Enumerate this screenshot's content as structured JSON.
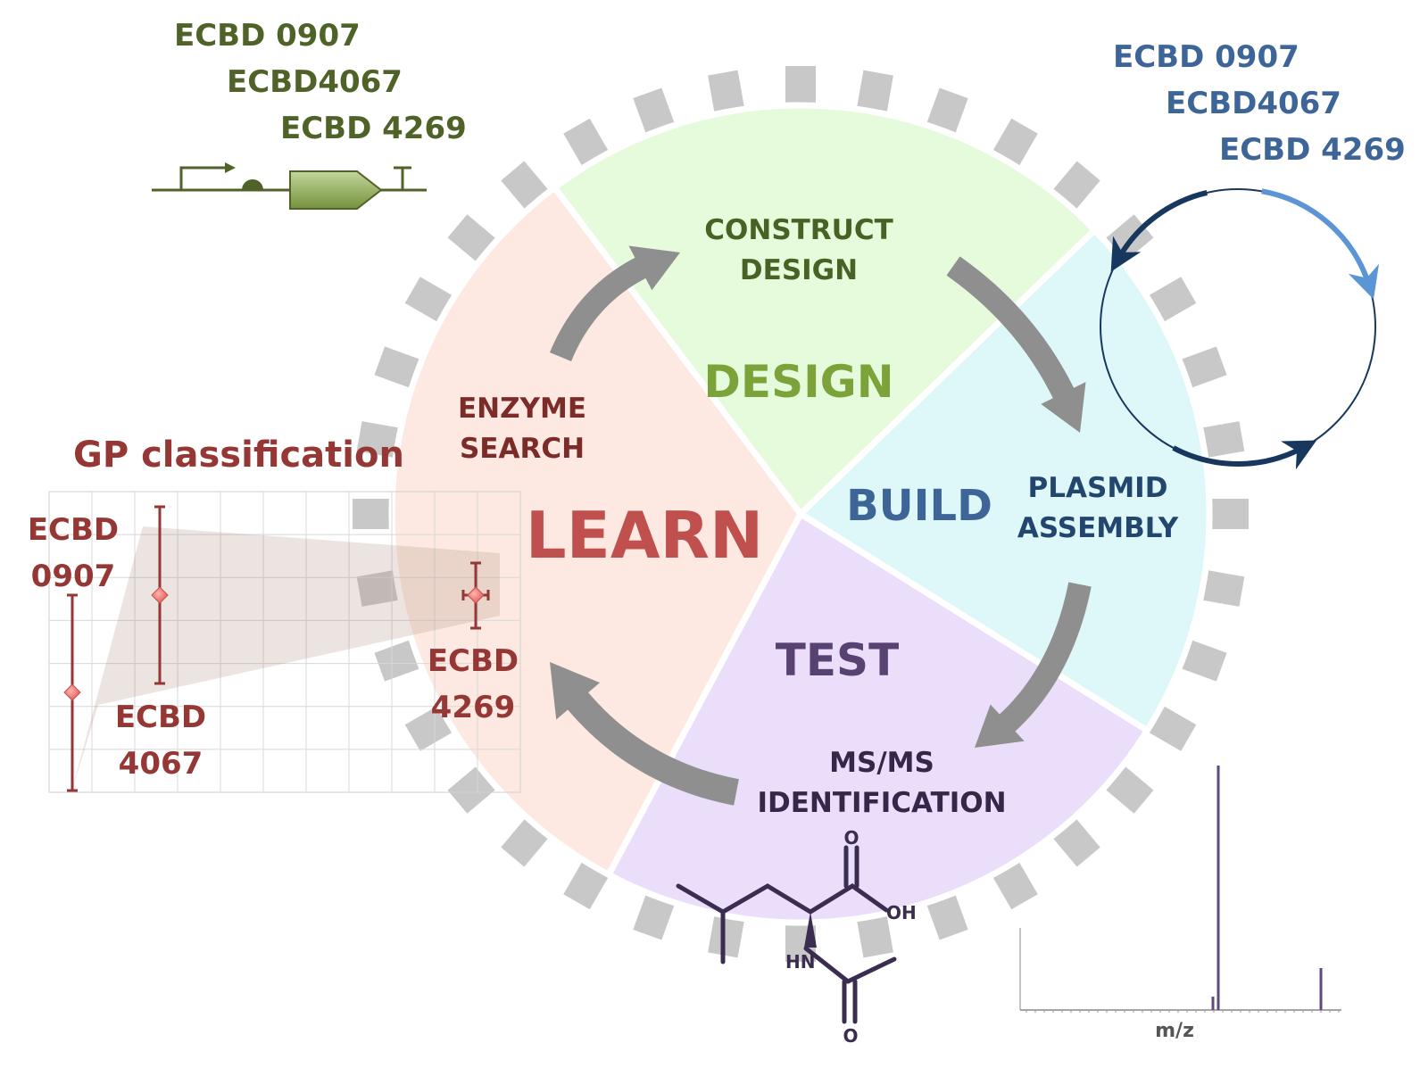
{
  "colors": {
    "gear": "#c8c8c8",
    "design_fill": "#e5fbdc",
    "build_fill": "#def8fa",
    "test_fill": "#ebdefb",
    "learn_fill": "#fde9e1",
    "design_text": "#7ca33a",
    "design_label": "#4a6125",
    "build_text": "#3e6597",
    "build_label": "#23466f",
    "test_text": "#584272",
    "test_label": "#352748",
    "learn_text": "#c0504d",
    "learn_label": "#7b2b28",
    "gp_text": "#953734",
    "flow_arrow": "#8f8f8f",
    "parts_green": "#4f6228",
    "plasmid_dark": "#17375e",
    "plasmid_light": "#5b95d5",
    "spectrum": "#5e4a7e",
    "molecule": "#3a2d4f"
  },
  "phases": {
    "design": {
      "title": "DESIGN",
      "label_lines": [
        "CONSTRUCT",
        "DESIGN"
      ]
    },
    "build": {
      "title": "BUILD",
      "label_lines": [
        "PLASMID",
        "ASSEMBLY"
      ]
    },
    "test": {
      "title": "TEST",
      "label_lines": [
        "MS/MS",
        "IDENTIFICATION"
      ]
    },
    "learn": {
      "title": "LEARN",
      "label_lines": [
        "ENZYME",
        "SEARCH"
      ]
    }
  },
  "parts_list": [
    "ECBD 0907",
    "ECBD4067",
    "ECBD 4269"
  ],
  "plasmid_list": [
    "ECBD 0907",
    "ECBD4067",
    "ECBD 4269"
  ],
  "gp": {
    "title": "GP classification",
    "labels": [
      {
        "lines": [
          "ECBD",
          "0907"
        ]
      },
      {
        "lines": [
          "ECBD",
          "4067"
        ]
      },
      {
        "lines": [
          "ECBD",
          "4269"
        ]
      }
    ]
  },
  "molecule": {
    "oxygen_top": "O",
    "oh": "OH",
    "hn": "HN",
    "oxygen_bottom": "O"
  },
  "spectrum": {
    "xlabel": "m/z"
  }
}
